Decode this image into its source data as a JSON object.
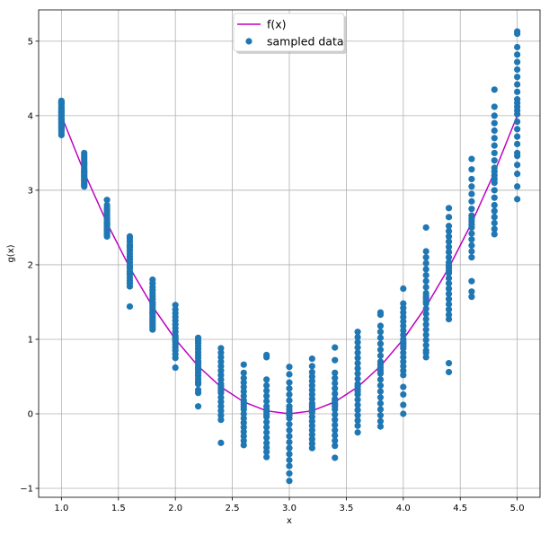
{
  "chart_data": {
    "type": "scatter",
    "title": "",
    "xlabel": "x",
    "ylabel": "g(x)",
    "xlim": [
      0.8,
      5.2
    ],
    "ylim": [
      -1.12,
      5.42
    ],
    "xticks": [
      1.0,
      1.5,
      2.0,
      2.5,
      3.0,
      3.5,
      4.0,
      4.5,
      5.0
    ],
    "xtick_labels": [
      "1.0",
      "1.5",
      "2.0",
      "2.5",
      "3.0",
      "3.5",
      "4.0",
      "4.5",
      "5.0"
    ],
    "yticks": [
      -1,
      0,
      1,
      2,
      3,
      4,
      5
    ],
    "ytick_labels": [
      "−1",
      "0",
      "1",
      "2",
      "3",
      "4",
      "5"
    ],
    "grid": true,
    "legend": {
      "placement": "upper-center",
      "entries": [
        {
          "label": "f(x)",
          "kind": "line",
          "color": "#bf00bf"
        },
        {
          "label": "sampled data",
          "kind": "marker",
          "color": "#1f77b4"
        }
      ]
    },
    "series": [
      {
        "name": "f(x)",
        "kind": "line",
        "color": "#bf00bf",
        "x": [
          1.0,
          1.2,
          1.4,
          1.6,
          1.8,
          2.0,
          2.2,
          2.4,
          2.6,
          2.8,
          3.0,
          3.2,
          3.4,
          3.6,
          3.8,
          4.0,
          4.2,
          4.4,
          4.6,
          4.8,
          5.0
        ],
        "y": [
          4.0,
          3.24,
          2.56,
          1.96,
          1.44,
          1.0,
          0.64,
          0.36,
          0.16,
          0.04,
          0.0,
          0.04,
          0.16,
          0.36,
          0.64,
          1.0,
          1.44,
          1.96,
          2.56,
          3.24,
          4.0
        ]
      },
      {
        "name": "sampled data",
        "kind": "scatter",
        "color": "#1f77b4",
        "groups": [
          {
            "x": 1.0,
            "y": [
              4.2,
              4.17,
              4.15,
              4.12,
              4.1,
              4.08,
              4.06,
              4.04,
              4.02,
              4.0,
              3.98,
              3.96,
              3.94,
              3.92,
              3.9,
              3.88,
              3.86,
              3.84,
              3.82,
              3.8,
              3.77,
              3.74,
              4.18,
              4.05,
              3.95
            ]
          },
          {
            "x": 1.2,
            "y": [
              3.5,
              3.47,
              3.44,
              3.41,
              3.38,
              3.35,
              3.32,
              3.29,
              3.27,
              3.25,
              3.23,
              3.21,
              3.19,
              3.17,
              3.15,
              3.13,
              3.11,
              3.09,
              3.07,
              3.05,
              3.36,
              3.24
            ]
          },
          {
            "x": 1.4,
            "y": [
              2.87,
              2.8,
              2.76,
              2.73,
              2.7,
              2.67,
              2.64,
              2.61,
              2.58,
              2.56,
              2.54,
              2.52,
              2.5,
              2.48,
              2.46,
              2.44,
              2.42,
              2.4,
              2.38,
              2.62,
              2.55
            ]
          },
          {
            "x": 1.6,
            "y": [
              2.38,
              2.35,
              2.31,
              2.27,
              2.23,
              2.19,
              2.15,
              2.11,
              2.07,
              2.03,
              1.99,
              1.95,
              1.91,
              1.87,
              1.83,
              1.79,
              1.75,
              1.71,
              1.44,
              2.25,
              1.97,
              1.89
            ]
          },
          {
            "x": 1.8,
            "y": [
              1.8,
              1.75,
              1.7,
              1.66,
              1.62,
              1.58,
              1.54,
              1.5,
              1.46,
              1.43,
              1.4,
              1.37,
              1.34,
              1.31,
              1.28,
              1.25,
              1.22,
              1.19,
              1.16,
              1.13,
              1.48,
              1.35
            ]
          },
          {
            "x": 2.0,
            "y": [
              1.46,
              1.4,
              1.35,
              1.3,
              1.25,
              1.2,
              1.15,
              1.1,
              1.05,
              1.01,
              0.97,
              0.93,
              0.89,
              0.85,
              0.8,
              0.75,
              0.62,
              1.03,
              0.99
            ]
          },
          {
            "x": 2.2,
            "y": [
              1.02,
              0.98,
              0.95,
              0.91,
              0.87,
              0.83,
              0.79,
              0.75,
              0.71,
              0.67,
              0.63,
              0.59,
              0.55,
              0.51,
              0.47,
              0.43,
              0.4,
              0.32,
              0.28,
              0.1,
              0.69,
              0.61
            ]
          },
          {
            "x": 2.4,
            "y": [
              0.88,
              0.82,
              0.76,
              0.7,
              0.64,
              0.58,
              0.52,
              0.46,
              0.4,
              0.34,
              0.28,
              0.22,
              0.16,
              0.1,
              0.04,
              -0.02,
              -0.08,
              -0.39,
              0.37,
              0.31
            ]
          },
          {
            "x": 2.6,
            "y": [
              0.66,
              0.55,
              0.48,
              0.42,
              0.36,
              0.3,
              0.24,
              0.18,
              0.12,
              0.06,
              0.0,
              -0.06,
              -0.12,
              -0.18,
              -0.24,
              -0.3,
              -0.36,
              -0.42,
              0.15,
              0.09
            ]
          },
          {
            "x": 2.8,
            "y": [
              0.79,
              0.76,
              0.46,
              0.38,
              0.31,
              0.24,
              0.17,
              0.1,
              0.03,
              -0.04,
              -0.11,
              -0.18,
              -0.25,
              -0.32,
              -0.39,
              -0.45,
              -0.51,
              -0.58,
              0.06,
              -0.01
            ]
          },
          {
            "x": 3.0,
            "y": [
              0.63,
              0.53,
              0.42,
              0.34,
              0.26,
              0.18,
              0.1,
              0.02,
              -0.06,
              -0.14,
              -0.22,
              -0.3,
              -0.38,
              -0.46,
              -0.54,
              -0.62,
              -0.7,
              -0.8,
              -0.9,
              0.06,
              -0.02
            ]
          },
          {
            "x": 3.2,
            "y": [
              0.74,
              0.64,
              0.56,
              0.5,
              0.44,
              0.38,
              0.32,
              0.26,
              0.2,
              0.14,
              0.08,
              0.02,
              -0.04,
              -0.1,
              -0.16,
              -0.22,
              -0.28,
              -0.34,
              -0.4,
              -0.46,
              0.11,
              0.05
            ]
          },
          {
            "x": 3.4,
            "y": [
              0.89,
              0.72,
              0.55,
              0.48,
              0.41,
              0.34,
              0.27,
              0.2,
              0.13,
              0.06,
              -0.01,
              -0.08,
              -0.15,
              -0.22,
              -0.29,
              -0.36,
              -0.43,
              -0.59,
              0.17,
              0.1
            ]
          },
          {
            "x": 3.6,
            "y": [
              1.1,
              1.03,
              0.96,
              0.89,
              0.82,
              0.75,
              0.68,
              0.61,
              0.54,
              0.47,
              0.4,
              0.33,
              0.26,
              0.19,
              0.12,
              0.05,
              -0.02,
              -0.09,
              -0.16,
              -0.25,
              0.37,
              0.3
            ]
          },
          {
            "x": 3.8,
            "y": [
              1.36,
              1.33,
              1.18,
              1.1,
              1.02,
              0.94,
              0.86,
              0.78,
              0.7,
              0.62,
              0.54,
              0.46,
              0.38,
              0.3,
              0.22,
              0.14,
              0.06,
              -0.02,
              -0.1,
              -0.17,
              0.66,
              0.58
            ]
          },
          {
            "x": 4.0,
            "y": [
              1.68,
              1.48,
              1.42,
              1.36,
              1.3,
              1.24,
              1.18,
              1.12,
              1.06,
              1.0,
              0.94,
              0.88,
              0.82,
              0.76,
              0.7,
              0.64,
              0.58,
              0.52,
              0.36,
              0.26,
              0.12,
              0.0,
              0.97,
              0.91
            ]
          },
          {
            "x": 4.2,
            "y": [
              2.5,
              2.18,
              2.1,
              2.02,
              1.94,
              1.86,
              1.78,
              1.7,
              1.62,
              1.55,
              1.48,
              1.41,
              1.34,
              1.27,
              1.2,
              1.13,
              1.06,
              0.99,
              0.92,
              0.85,
              0.82,
              0.76,
              1.58,
              1.51
            ]
          },
          {
            "x": 4.4,
            "y": [
              2.76,
              2.64,
              2.52,
              2.45,
              2.38,
              2.31,
              2.24,
              2.17,
              2.1,
              2.03,
              1.96,
              1.89,
              1.82,
              1.75,
              1.68,
              1.61,
              1.54,
              1.47,
              1.4,
              1.33,
              1.27,
              0.68,
              0.56,
              1.99,
              1.92
            ]
          },
          {
            "x": 4.6,
            "y": [
              3.42,
              3.28,
              3.15,
              3.05,
              2.95,
              2.85,
              2.75,
              2.66,
              2.58,
              2.5,
              2.42,
              2.34,
              2.26,
              2.18,
              2.1,
              1.78,
              1.64,
              1.57,
              2.62,
              2.54
            ]
          },
          {
            "x": 4.8,
            "y": [
              4.35,
              4.12,
              4.0,
              3.9,
              3.8,
              3.7,
              3.6,
              3.5,
              3.4,
              3.3,
              3.2,
              3.1,
              3.0,
              2.9,
              2.8,
              2.72,
              2.64,
              2.56,
              2.48,
              2.41,
              3.25,
              3.15
            ]
          },
          {
            "x": 5.0,
            "y": [
              5.13,
              5.1,
              4.92,
              4.82,
              4.72,
              4.62,
              4.52,
              4.42,
              4.32,
              4.22,
              4.12,
              4.02,
              3.92,
              3.82,
              3.72,
              3.62,
              3.5,
              3.46,
              3.34,
              3.22,
              3.05,
              2.88,
              4.17,
              4.07
            ]
          }
        ]
      }
    ]
  }
}
